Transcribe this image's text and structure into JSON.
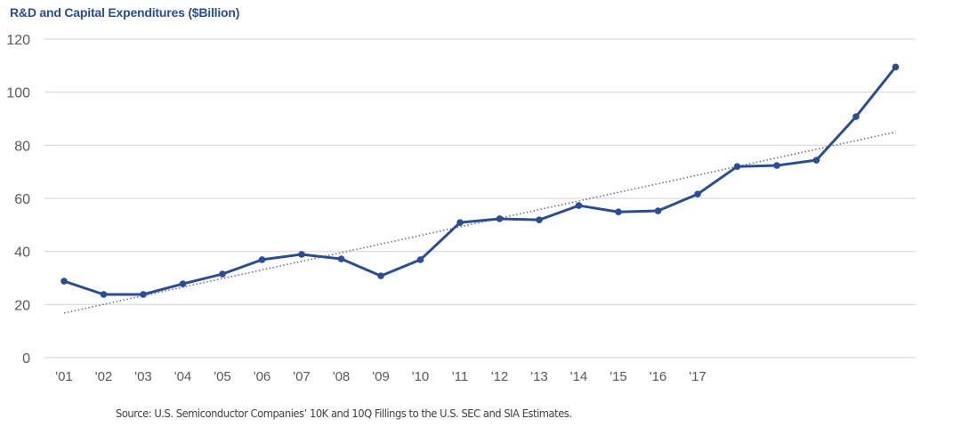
{
  "chart_data": {
    "type": "line",
    "title": "R&D and Capital Expenditures ($Billion)",
    "xlabel": "",
    "ylabel": "",
    "ylim": [
      0,
      120
    ],
    "yticks": [
      "0",
      "20",
      "40",
      "60",
      "80",
      "100",
      "120"
    ],
    "ytick_values": [
      0,
      20,
      40,
      60,
      80,
      100,
      120
    ],
    "grid": true,
    "categories": [
      "'01",
      "'02",
      "'03",
      "'04",
      "'05",
      "'06",
      "'07",
      "'08",
      "'09",
      "'10",
      "'11",
      "'12",
      "'13",
      "'14",
      "'15",
      "'16",
      "'17",
      "",
      "",
      "",
      "",
      ""
    ],
    "series": [
      {
        "name": "R&D and Capital Expenditures",
        "color": "#2a4d9b",
        "values": [
          28.8,
          23.8,
          23.8,
          27.8,
          31.5,
          36.9,
          38.9,
          37.2,
          30.8,
          36.9,
          50.9,
          52.3,
          51.9,
          57.3,
          54.9,
          55.3,
          61.6,
          72.0,
          72.4,
          74.4,
          90.8,
          109.5
        ]
      }
    ],
    "trendline": {
      "style": "dotted",
      "color": "#6b7280",
      "start_value": 16.8,
      "end_value": 85.0
    },
    "source": "Source: U.S. Semiconductor Companies’ 10K and 10Q Fillings to the U.S. SEC and SIA Estimates."
  }
}
